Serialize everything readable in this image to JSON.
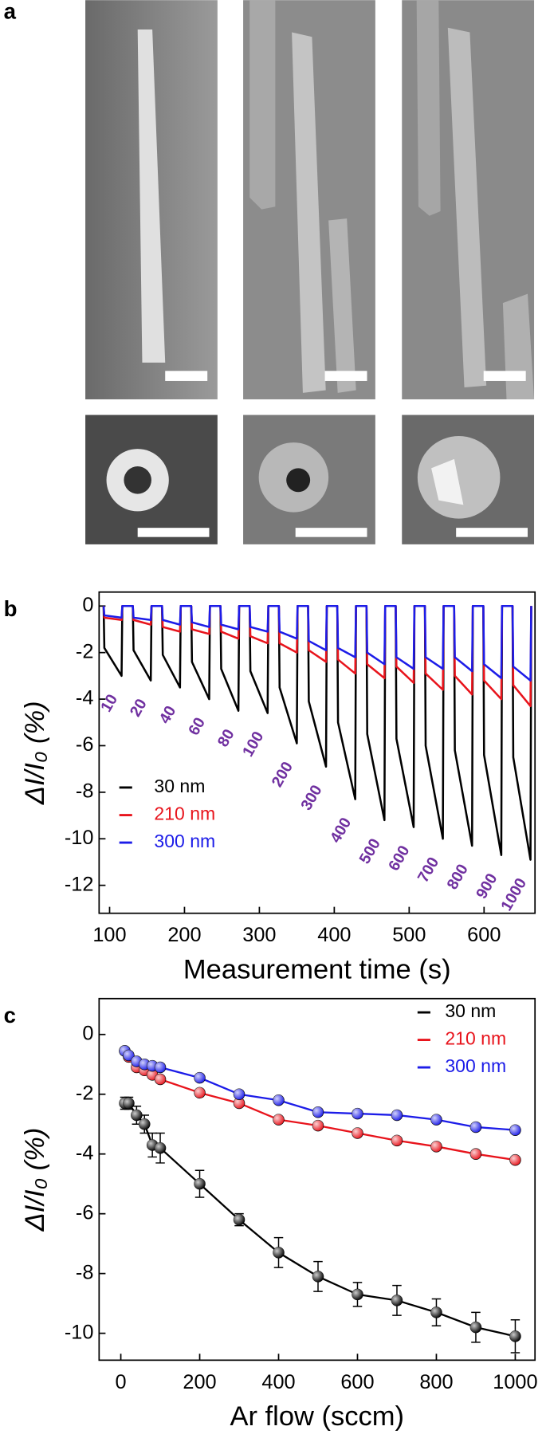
{
  "panel_a": {
    "label": "a"
  },
  "chart_data": [
    {
      "type": "line",
      "panel_label": "b",
      "xlabel": "Measurement time (s)",
      "ylabel": "ΔI/I₀ (%)",
      "xlim": [
        86,
        668
      ],
      "ylim": [
        -13.2,
        0.6
      ],
      "xticks": [
        100,
        200,
        300,
        400,
        500,
        600
      ],
      "yticks": [
        0,
        -2,
        -4,
        -6,
        -8,
        -10,
        -12
      ],
      "legend": "left",
      "markers": false,
      "annotation_color": "#7030a0",
      "annotations": [
        "10",
        "20",
        "40",
        "60",
        "80",
        "100",
        "200",
        "300",
        "400",
        "500",
        "600",
        "700",
        "800",
        "900",
        "1000"
      ],
      "x": [
        92,
        93,
        116,
        117,
        131,
        132,
        155,
        156,
        170,
        171,
        194,
        195,
        209,
        210,
        233,
        234,
        248,
        249,
        272,
        273,
        287,
        288,
        311,
        312,
        326,
        327,
        350,
        351,
        365,
        366,
        389,
        390,
        404,
        405,
        428,
        429,
        443,
        444,
        467,
        468,
        482,
        483,
        506,
        507,
        521,
        522,
        545,
        546,
        560,
        561,
        584,
        585,
        599,
        600,
        623,
        624,
        638,
        639,
        662,
        663
      ],
      "series": [
        {
          "name": "30 nm",
          "color": "#000000",
          "values": [
            0,
            -1.8,
            -3.0,
            0,
            0,
            -1.9,
            -3.2,
            0,
            0,
            -2.1,
            -3.5,
            0,
            0,
            -2.4,
            -4.0,
            0,
            0,
            -2.7,
            -4.5,
            0,
            0,
            -2.8,
            -4.6,
            0,
            0,
            -3.5,
            -5.9,
            0,
            0,
            -4.1,
            -6.9,
            0,
            0,
            -5.0,
            -8.3,
            0,
            0,
            -5.5,
            -9.2,
            0,
            0,
            -5.7,
            -9.5,
            0,
            0,
            -6.0,
            -10.0,
            0,
            0,
            -6.2,
            -10.3,
            0,
            0,
            -6.4,
            -10.7,
            0,
            0,
            -6.5,
            -10.9,
            0
          ]
        },
        {
          "name": "210 nm",
          "color": "#e8141c",
          "values": [
            0,
            -0.5,
            -0.6,
            0,
            0,
            -0.6,
            -0.8,
            0,
            0,
            -0.9,
            -1.1,
            0,
            0,
            -1.0,
            -1.2,
            0,
            0,
            -1.1,
            -1.4,
            0,
            0,
            -1.3,
            -1.6,
            0,
            0,
            -1.6,
            -2.0,
            0,
            0,
            -1.9,
            -2.4,
            0,
            0,
            -2.3,
            -2.9,
            0,
            0,
            -2.5,
            -3.1,
            0,
            0,
            -2.6,
            -3.3,
            0,
            0,
            -2.9,
            -3.6,
            0,
            0,
            -3.0,
            -3.8,
            0,
            0,
            -3.2,
            -4.0,
            0,
            0,
            -3.4,
            -4.3,
            0
          ]
        },
        {
          "name": "300 nm",
          "color": "#1c1ce8",
          "values": [
            0,
            -0.4,
            -0.5,
            0,
            0,
            -0.5,
            -0.6,
            0,
            0,
            -0.6,
            -0.8,
            0,
            0,
            -0.7,
            -0.9,
            0,
            0,
            -0.8,
            -1.0,
            0,
            0,
            -0.9,
            -1.1,
            0,
            0,
            -1.1,
            -1.4,
            0,
            0,
            -1.5,
            -1.9,
            0,
            0,
            -1.8,
            -2.2,
            0,
            0,
            -2.0,
            -2.5,
            0,
            0,
            -2.2,
            -2.7,
            0,
            0,
            -2.2,
            -2.7,
            0,
            0,
            -2.2,
            -2.8,
            0,
            0,
            -2.5,
            -3.1,
            0,
            0,
            -2.6,
            -3.2,
            0
          ]
        }
      ]
    },
    {
      "type": "line",
      "panel_label": "c",
      "xlabel": "Ar flow (sccm)",
      "ylabel": "ΔI/I₀ (%)",
      "xlim": [
        -55,
        1050
      ],
      "ylim": [
        -10.9,
        1.2
      ],
      "xticks": [
        0,
        200,
        400,
        600,
        800,
        1000
      ],
      "yticks": [
        0,
        -2,
        -4,
        -6,
        -8,
        -10
      ],
      "legend": "upper right",
      "markers": true,
      "x": [
        10,
        20,
        40,
        60,
        80,
        100,
        200,
        300,
        400,
        500,
        600,
        700,
        800,
        900,
        1000
      ],
      "series": [
        {
          "name": "30 nm",
          "color": "#000000",
          "values": [
            -2.3,
            -2.3,
            -2.7,
            -3.0,
            -3.7,
            -3.8,
            -5.0,
            -6.2,
            -7.3,
            -8.1,
            -8.7,
            -8.9,
            -9.3,
            -9.8,
            -10.1
          ],
          "errors": [
            0.2,
            0.2,
            0.3,
            0.3,
            0.4,
            0.5,
            0.45,
            0.2,
            0.5,
            0.5,
            0.4,
            0.5,
            0.45,
            0.5,
            0.55
          ]
        },
        {
          "name": "210 nm",
          "color": "#e8141c",
          "values": [
            -0.55,
            -0.75,
            -1.1,
            -1.2,
            -1.35,
            -1.5,
            -1.95,
            -2.3,
            -2.85,
            -3.05,
            -3.3,
            -3.55,
            -3.75,
            -4.0,
            -4.2
          ],
          "errors": [
            0.05,
            0.05,
            0.05,
            0.05,
            0.05,
            0.05,
            0.05,
            0.05,
            0.05,
            0.05,
            0.05,
            0.05,
            0.05,
            0.05,
            0.05
          ]
        },
        {
          "name": "300 nm",
          "color": "#1c1ce8",
          "values": [
            -0.55,
            -0.7,
            -0.9,
            -1.0,
            -1.05,
            -1.1,
            -1.45,
            -2.0,
            -2.2,
            -2.6,
            -2.65,
            -2.7,
            -2.85,
            -3.1,
            -3.2
          ],
          "errors": [
            0.1,
            0.1,
            0.1,
            0.1,
            0.1,
            0.1,
            0.1,
            0.1,
            0.05,
            0.1,
            0.1,
            0.1,
            0.05,
            0.1,
            0.1
          ]
        }
      ]
    }
  ]
}
